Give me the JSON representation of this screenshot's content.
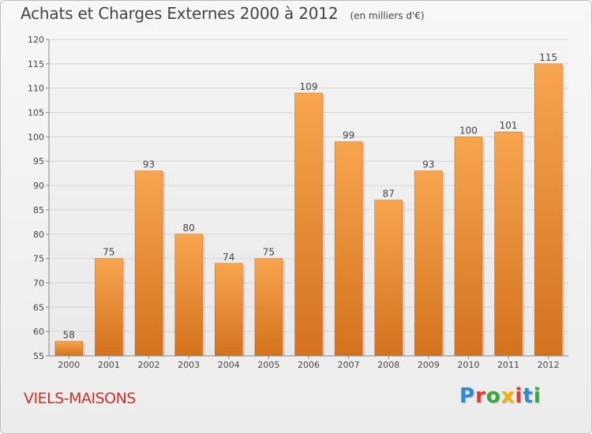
{
  "header": {
    "title": "Achats et Charges Externes 2000 à 2012",
    "subtitle": "(en milliers d'€)"
  },
  "footer": {
    "location": "VIELS-MAISONS",
    "logo_text": "Proxiti",
    "logo_colors": [
      "#2d8bd6",
      "#e83a2a",
      "#3aa83a",
      "#f2b200",
      "#e83a2a",
      "#2d8bd6",
      "#3aa83a"
    ]
  },
  "chart_data": {
    "type": "bar",
    "categories": [
      "2000",
      "2001",
      "2002",
      "2003",
      "2004",
      "2005",
      "2006",
      "2007",
      "2008",
      "2009",
      "2010",
      "2011",
      "2012"
    ],
    "values": [
      58,
      75,
      93,
      80,
      74,
      75,
      109,
      99,
      87,
      93,
      100,
      101,
      115
    ],
    "title": "Achats et Charges Externes 2000 à 2012",
    "subtitle": "(en milliers d'€)",
    "ylim": [
      55,
      120
    ],
    "yticks": [
      55,
      60,
      65,
      70,
      75,
      80,
      85,
      90,
      95,
      100,
      105,
      110,
      115,
      120
    ],
    "grid": true,
    "bar_color": "#f0983e",
    "bar_color_dark": "#d4711c"
  }
}
